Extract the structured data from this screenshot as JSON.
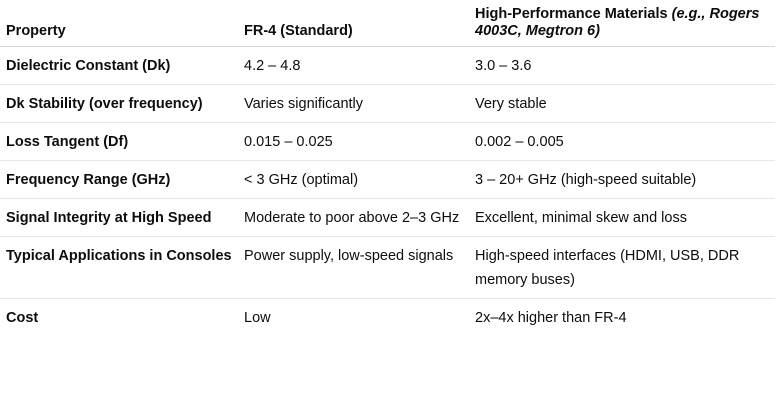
{
  "table": {
    "headers": {
      "property": "Property",
      "fr4": "FR-4 (Standard)",
      "hp_main": "High-Performance Materials",
      "hp_note": "(e.g., Rogers 4003C, Megtron 6)"
    },
    "rows": [
      {
        "property": "Dielectric Constant (Dk)",
        "fr4": "4.2 – 4.8",
        "hp": "3.0 – 3.6"
      },
      {
        "property": "Dk Stability (over frequency)",
        "fr4": "Varies significantly",
        "hp": "Very stable"
      },
      {
        "property": "Loss Tangent (Df)",
        "fr4": "0.015 – 0.025",
        "hp": "0.002 – 0.005"
      },
      {
        "property": "Frequency Range (GHz)",
        "fr4": "< 3 GHz (optimal)",
        "hp": "3 – 20+ GHz (high-speed suitable)"
      },
      {
        "property": "Signal Integrity at High Speed",
        "fr4": "Moderate to poor above 2–3 GHz",
        "hp": "Excellent, minimal skew and loss"
      },
      {
        "property": "Typical Applications in Consoles",
        "fr4": "Power supply, low-speed signals",
        "hp": "High-speed interfaces (HDMI, USB, DDR memory buses)"
      },
      {
        "property": "Cost",
        "fr4": "Low",
        "hp": "2x–4x higher than FR-4"
      }
    ]
  }
}
